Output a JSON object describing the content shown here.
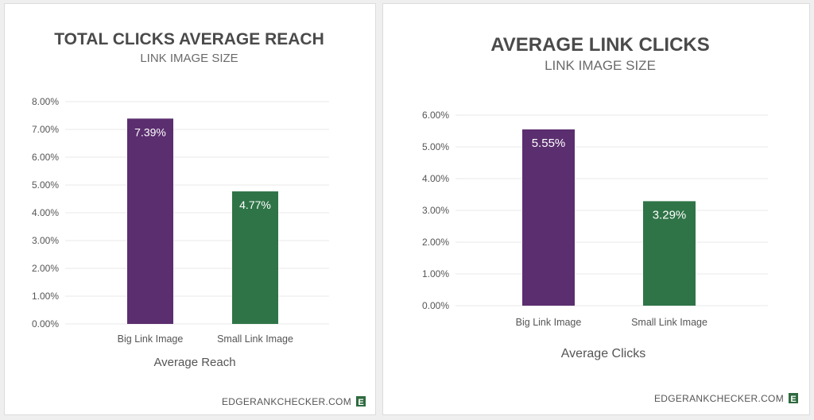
{
  "chart_data": [
    {
      "type": "bar",
      "title": "TOTAL CLICKS AVERAGE REACH",
      "subtitle": "LINK IMAGE SIZE",
      "categories": [
        "Big Link Image",
        "Small Link Image"
      ],
      "values": [
        7.39,
        4.77
      ],
      "value_labels": [
        "7.39%",
        "4.77%"
      ],
      "bar_colors": [
        "#5b2e6f",
        "#2f7447"
      ],
      "xlabel": "Average Reach",
      "ylabel": "",
      "ylim": [
        0,
        8
      ],
      "yticks": [
        "0.00%",
        "1.00%",
        "2.00%",
        "3.00%",
        "4.00%",
        "5.00%",
        "6.00%",
        "7.00%",
        "8.00%"
      ],
      "grid": true,
      "legend": "none"
    },
    {
      "type": "bar",
      "title": "AVERAGE LINK CLICKS",
      "subtitle": "LINK IMAGE SIZE",
      "categories": [
        "Big Link Image",
        "Small Link Image"
      ],
      "values": [
        5.55,
        3.29
      ],
      "value_labels": [
        "5.55%",
        "3.29%"
      ],
      "bar_colors": [
        "#5b2e6f",
        "#2f7447"
      ],
      "xlabel": "Average Clicks",
      "ylabel": "",
      "ylim": [
        0,
        6
      ],
      "yticks": [
        "0.00%",
        "1.00%",
        "2.00%",
        "3.00%",
        "4.00%",
        "5.00%",
        "6.00%"
      ],
      "grid": true,
      "legend": "none"
    }
  ],
  "branding": {
    "site": "EDGERANKCHECKER.COM",
    "badge_letter": "E",
    "badge_color": "#2f6b3f"
  }
}
